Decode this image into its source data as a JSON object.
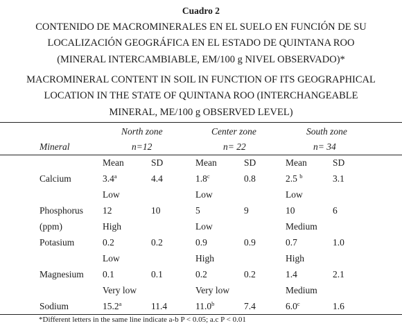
{
  "caption": {
    "label": "Cuadro 2",
    "spanish": [
      "CONTENIDO DE MACROMINERALES EN EL SUELO EN FUNCIÓN DE SU",
      "LOCALIZACIÓN GEOGRÁFICA EN EL ESTADO DE QUINTANA ROO",
      "(MINERAL INTERCAMBIABLE, EM/100 g NIVEL OBSERVADO)*"
    ],
    "english": [
      "MACROMINERAL CONTENT IN SOIL IN FUNCTION OF ITS GEOGRAPHICAL",
      "LOCATION IN THE STATE OF QUINTANA ROO (INTERCHANGEABLE",
      "MINERAL, ME/100 g OBSERVED LEVEL)"
    ]
  },
  "table": {
    "mineral_header": "Mineral",
    "zones": [
      {
        "name": "North zone",
        "n": "n=12"
      },
      {
        "name": "Center zone",
        "n": "n= 22"
      },
      {
        "name": "South zone",
        "n": "n= 34"
      }
    ],
    "mean_label": "Mean",
    "sd_label": "SD",
    "rows": [
      {
        "mineral": "Calcium",
        "mineral_line2": "",
        "values": [
          {
            "mean": "3.4",
            "sup": "a",
            "sd": "4.4",
            "level": "Low"
          },
          {
            "mean": "1.8",
            "sup": "c",
            "sd": "0.8",
            "level": "Low"
          },
          {
            "mean": "2.5 ",
            "sup": "b",
            "sd": "3.1",
            "level": "Low"
          }
        ]
      },
      {
        "mineral": "Phosphorus",
        "mineral_line2": "(ppm)",
        "values": [
          {
            "mean": "12",
            "sup": "",
            "sd": "10",
            "level": "High"
          },
          {
            "mean": "5",
            "sup": "",
            "sd": "9",
            "level": "Low"
          },
          {
            "mean": "10",
            "sup": "",
            "sd": "6",
            "level": "Medium"
          }
        ]
      },
      {
        "mineral": "Potasium",
        "mineral_line2": "",
        "values": [
          {
            "mean": "0.2",
            "sup": "",
            "sd": "0.2",
            "level": "Low"
          },
          {
            "mean": "0.9",
            "sup": "",
            "sd": "0.9",
            "level": "High"
          },
          {
            "mean": "0.7",
            "sup": "",
            "sd": "1.0",
            "level": "High"
          }
        ]
      },
      {
        "mineral": "Magnesium",
        "mineral_line2": "",
        "values": [
          {
            "mean": "0.1",
            "sup": "",
            "sd": "0.1",
            "level": "Very low"
          },
          {
            "mean": "0.2",
            "sup": "",
            "sd": "0.2",
            "level": "Very low"
          },
          {
            "mean": "1.4",
            "sup": "",
            "sd": "2.1",
            "level": "Medium"
          }
        ]
      },
      {
        "mineral": "Sodium",
        "mineral_line2": "",
        "values": [
          {
            "mean": "15.2",
            "sup": "a",
            "sd": "11.4",
            "level": ""
          },
          {
            "mean": "11.0",
            "sup": "b",
            "sd": "7.4",
            "level": ""
          },
          {
            "mean": "6.0",
            "sup": "c",
            "sd": "1.6",
            "level": ""
          }
        ]
      }
    ]
  },
  "footnote": "*Different letters in the same line indicate a-b P < 0.05; a.c P < 0.01"
}
